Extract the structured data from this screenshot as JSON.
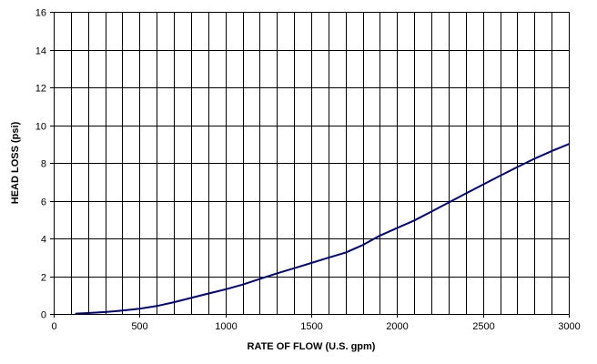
{
  "chart_data": {
    "type": "line",
    "title": "",
    "xlabel": "RATE OF FLOW (U.S. gpm)",
    "ylabel": "HEAD LOSS (psi)",
    "xlim": [
      0,
      3000
    ],
    "ylim": [
      0,
      16
    ],
    "x_ticks": [
      0,
      500,
      1000,
      1500,
      2000,
      2500,
      3000
    ],
    "y_ticks": [
      0,
      2,
      4,
      6,
      8,
      10,
      12,
      14,
      16
    ],
    "x_tick_labels": [
      "0",
      "500",
      "1000",
      "1500",
      "2000",
      "2500",
      "3000"
    ],
    "y_tick_labels": [
      "0",
      "2",
      "4",
      "6",
      "8",
      "10",
      "12",
      "14",
      "16"
    ],
    "vertical_grid_step": 100,
    "horizontal_grid_step": 2,
    "grid": true,
    "legend": "none",
    "line_color": "#000080",
    "series": [
      {
        "x": [
          130,
          200,
          300,
          400,
          500,
          600,
          700,
          800,
          900,
          1000,
          1100,
          1200,
          1300,
          1400,
          1500,
          1600,
          1700,
          1800,
          1900,
          2000,
          2100,
          2200,
          2300,
          2400,
          2500,
          2600,
          2700,
          2800,
          2900,
          3000
        ],
        "y": [
          0.02,
          0.05,
          0.1,
          0.18,
          0.28,
          0.42,
          0.62,
          0.85,
          1.08,
          1.3,
          1.55,
          1.85,
          2.15,
          2.42,
          2.7,
          2.98,
          3.25,
          3.65,
          4.15,
          4.55,
          4.95,
          5.42,
          5.9,
          6.38,
          6.85,
          7.32,
          7.78,
          8.22,
          8.62,
          9.0
        ]
      }
    ]
  }
}
